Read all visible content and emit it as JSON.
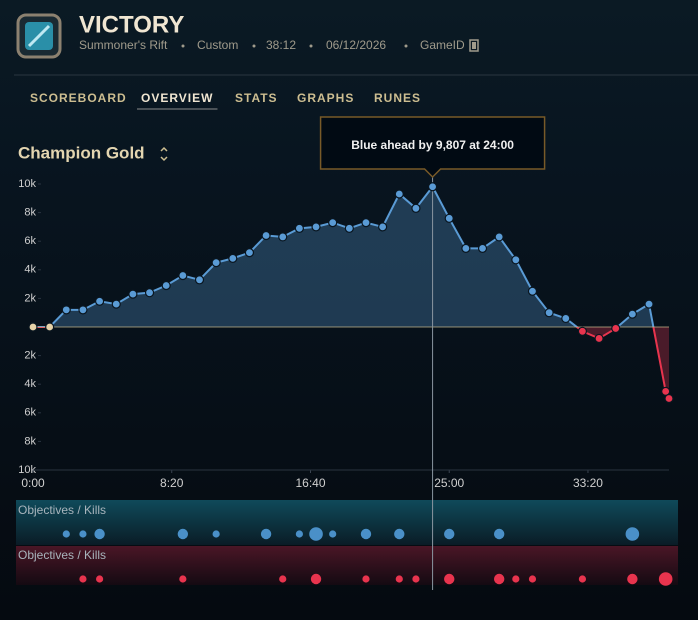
{
  "header": {
    "title": "VICTORY",
    "map": "Summoner's Rift",
    "mode": "Custom",
    "duration": "38:12",
    "date": "06/12/2026",
    "game_id": "GameID"
  },
  "tabs": [
    "SCOREBOARD",
    "OVERVIEW",
    "STATS",
    "GRAPHS",
    "RUNES"
  ],
  "active_tab": 1,
  "chart_data": {
    "type": "area",
    "title": "Champion Gold",
    "annotation": "Blue ahead by 9,807 at 24:00",
    "highlight_index": 24,
    "x": [
      0,
      1,
      2,
      3,
      4,
      5,
      6,
      7,
      8,
      9,
      10,
      11,
      12,
      13,
      14,
      15,
      16,
      17,
      18,
      19,
      20,
      21,
      22,
      23,
      24,
      25,
      26,
      27,
      28,
      29,
      30,
      31,
      32,
      33,
      34,
      35,
      36,
      37,
      38,
      38.2
    ],
    "values": [
      0,
      0,
      1200,
      1200,
      1800,
      1600,
      2300,
      2400,
      2900,
      3600,
      3300,
      4500,
      4800,
      5200,
      6400,
      6300,
      6900,
      7000,
      7300,
      6900,
      7300,
      7000,
      9300,
      8300,
      9807,
      7600,
      5500,
      5500,
      6300,
      4700,
      2500,
      1000,
      600,
      -300,
      -800,
      -100,
      900,
      1600,
      -4500,
      -5000
    ],
    "xlim": [
      0,
      38.2
    ],
    "xticks": [
      {
        "value": 0,
        "label": "0:00"
      },
      {
        "value": 8.333,
        "label": "8:20"
      },
      {
        "value": 16.667,
        "label": "16:40"
      },
      {
        "value": 25,
        "label": "25:00"
      },
      {
        "value": 33.333,
        "label": "33:20"
      }
    ],
    "ylim": [
      -10000,
      10000
    ],
    "yticks": [
      {
        "value": 10000,
        "label": "10k"
      },
      {
        "value": 8000,
        "label": "8k"
      },
      {
        "value": 6000,
        "label": "6k"
      },
      {
        "value": 4000,
        "label": "4k"
      },
      {
        "value": 2000,
        "label": "2k"
      },
      0,
      {
        "value": -2000,
        "label": "2k"
      },
      {
        "value": -4000,
        "label": "4k"
      },
      {
        "value": -6000,
        "label": "6k"
      },
      {
        "value": -8000,
        "label": "8k"
      },
      {
        "value": -10000,
        "label": "10k"
      }
    ],
    "positive_color": "#5a9bd5",
    "negative_color": "#e8344e",
    "zero_color": "#e6d2a8",
    "events": [
      {
        "label": "Objectives / Kills",
        "color": "#4a90c8",
        "x": [
          2,
          3,
          4,
          9,
          11,
          14,
          16,
          17,
          18,
          20,
          22,
          25,
          28,
          36
        ],
        "sizes": [
          1,
          1,
          2,
          2,
          1,
          2,
          1,
          3,
          1,
          2,
          2,
          2,
          2,
          3
        ]
      },
      {
        "label": "Objectives / Kills",
        "color": "#e8344e",
        "x": [
          3,
          4,
          9,
          15,
          17,
          20,
          22,
          23,
          25,
          28,
          29,
          30,
          33,
          36,
          38
        ],
        "sizes": [
          1,
          1,
          1,
          1,
          2,
          1,
          1,
          1,
          2,
          2,
          1,
          1,
          1,
          2,
          3
        ]
      }
    ]
  }
}
